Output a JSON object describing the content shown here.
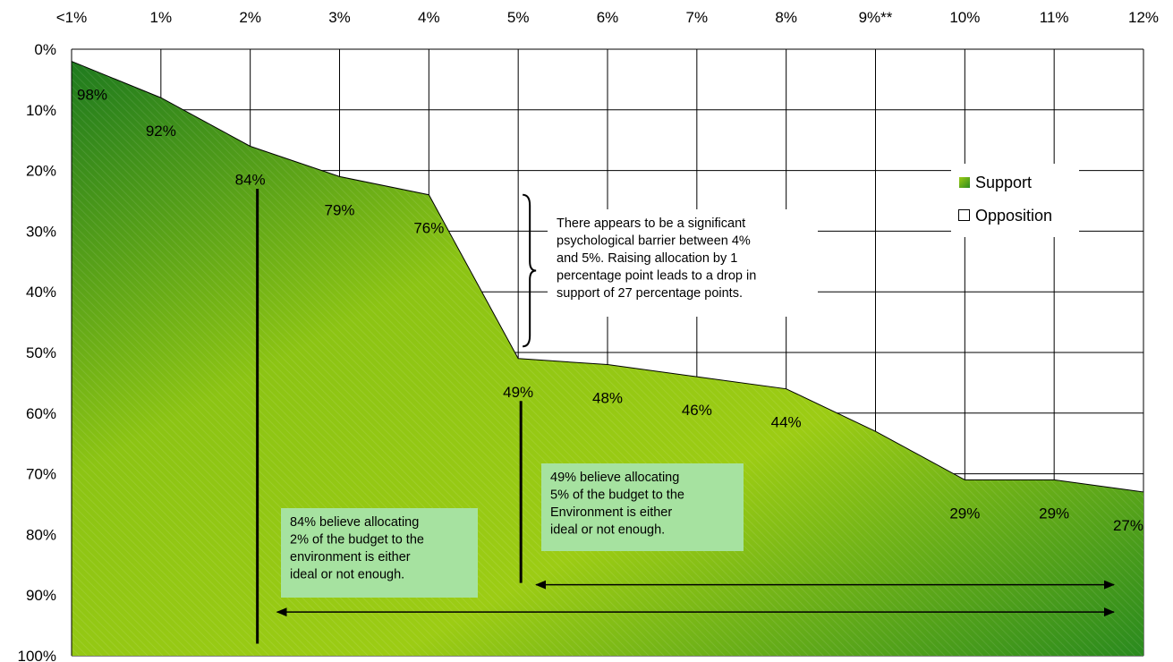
{
  "chart_data": {
    "type": "area",
    "x_categories": [
      "<1%",
      "1%",
      "2%",
      "3%",
      "4%",
      "5%",
      "6%",
      "7%",
      "8%",
      "9%**",
      "10%",
      "11%",
      "12%"
    ],
    "y_ticks": [
      "0%",
      "10%",
      "20%",
      "30%",
      "40%",
      "50%",
      "60%",
      "70%",
      "80%",
      "90%",
      "100%"
    ],
    "y_axis_inverted": true,
    "ylim": [
      0,
      100
    ],
    "grid": true,
    "series": [
      {
        "name": "Support",
        "color": "#6fb81c",
        "values": [
          98,
          92,
          84,
          79,
          76,
          49,
          48,
          46,
          44,
          37,
          29,
          29,
          27
        ]
      },
      {
        "name": "Opposition",
        "color": "#ffffff",
        "values": [
          2,
          8,
          16,
          21,
          24,
          51,
          52,
          54,
          56,
          63,
          71,
          71,
          73
        ]
      }
    ],
    "data_labels": [
      {
        "x": "<1%",
        "text": "98%"
      },
      {
        "x": "1%",
        "text": "92%"
      },
      {
        "x": "2%",
        "text": "84%"
      },
      {
        "x": "3%",
        "text": "79%"
      },
      {
        "x": "4%",
        "text": "76%"
      },
      {
        "x": "5%",
        "text": "49%"
      },
      {
        "x": "6%",
        "text": "48%"
      },
      {
        "x": "7%",
        "text": "46%"
      },
      {
        "x": "8%",
        "text": "44%"
      },
      {
        "x": "10%",
        "text": "29%"
      },
      {
        "x": "11%",
        "text": "29%"
      },
      {
        "x": "12%",
        "text": "27%"
      }
    ],
    "legend": {
      "position": "right",
      "entries": [
        "Support",
        "Opposition"
      ]
    },
    "annotations": {
      "barrier_note": [
        "There appears to be a significant",
        "psychological barrier between 4%",
        "and 5%.  Raising allocation by 1",
        "percentage point leads to a drop in",
        "support of 27 percentage points."
      ],
      "note_2pct": [
        "84% believe allocating",
        "2% of the budget to the",
        "environment is either",
        "ideal or not enough."
      ],
      "note_5pct": [
        "49% believe allocating",
        "5% of the budget to the",
        "Environment is either",
        "ideal or not enough."
      ]
    },
    "colors": {
      "area_light": "#9ccc14",
      "area_dark": "#1e7a1e",
      "note_box": "#a6e2a0",
      "grid": "#000000"
    }
  }
}
